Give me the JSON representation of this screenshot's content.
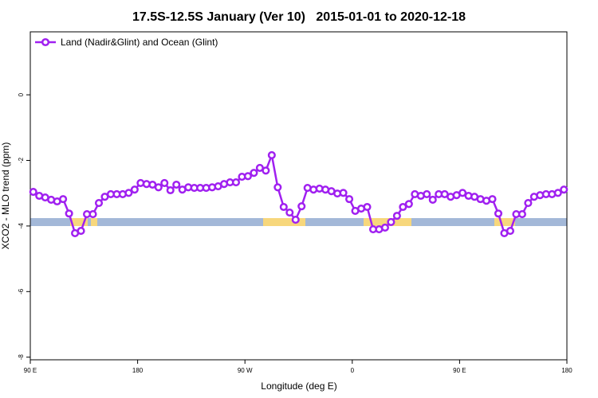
{
  "chart_data": {
    "type": "line",
    "title": "17.5S-12.5S January (Ver 10)   2015-01-01 to 2020-12-18",
    "xlabel": "Longitude (deg E)",
    "ylabel": "XCO2 - MLO trend (ppm)",
    "xlim": [
      90,
      540
    ],
    "ylim": [
      -8.08,
      1.92
    ],
    "xticks": [
      {
        "value": 90,
        "label": "90 E"
      },
      180,
      {
        "value": 270,
        "label": "90 W"
      },
      {
        "value": 360,
        "label": "0"
      },
      {
        "value": 450,
        "label": "90 E"
      },
      {
        "value": 540,
        "label": "180"
      }
    ],
    "yticks": [
      0,
      -2,
      -4,
      -6,
      -8
    ],
    "legend": "top-left",
    "x": [
      92.5,
      97.5,
      102.5,
      107.5,
      112.5,
      117.5,
      122.5,
      127.5,
      132.5,
      137.5,
      142.5,
      147.5,
      152.5,
      157.5,
      162.5,
      167.5,
      172.5,
      177.5,
      182.5,
      187.5,
      192.5,
      197.5,
      202.5,
      207.5,
      212.5,
      217.5,
      222.5,
      227.5,
      232.5,
      237.5,
      242.5,
      247.5,
      252.5,
      257.5,
      262.5,
      267.5,
      272.5,
      277.5,
      282.5,
      287.5,
      292.5,
      297.5,
      302.5,
      307.5,
      312.5,
      317.5,
      322.5,
      327.5,
      332.5,
      337.5,
      342.5,
      347.5,
      352.5,
      357.5,
      362.5,
      367.5,
      372.5,
      377.5,
      382.5,
      387.5,
      392.5,
      397.5,
      402.5,
      407.5,
      412.5,
      417.5,
      422.5,
      427.5,
      432.5,
      437.5,
      442.5,
      447.5,
      452.5,
      457.5,
      462.5,
      467.5,
      472.5,
      477.5,
      482.5,
      487.5,
      492.5,
      497.5,
      502.5,
      507.5,
      512.5,
      517.5,
      522.5,
      527.5,
      532.5,
      537.5
    ],
    "series": [
      {
        "name": "Land (Nadir&Glint) and Ocean (Glint)",
        "color": "#a020f0",
        "values": [
          -2.96,
          -3.08,
          -3.13,
          -3.2,
          -3.25,
          -3.18,
          -3.62,
          -4.22,
          -4.15,
          -3.64,
          -3.64,
          -3.3,
          -3.11,
          -3.03,
          -3.03,
          -3.03,
          -2.99,
          -2.89,
          -2.69,
          -2.72,
          -2.74,
          -2.82,
          -2.69,
          -2.91,
          -2.74,
          -2.89,
          -2.82,
          -2.84,
          -2.84,
          -2.84,
          -2.82,
          -2.79,
          -2.72,
          -2.67,
          -2.67,
          -2.5,
          -2.48,
          -2.38,
          -2.23,
          -2.31,
          -1.84,
          -2.82,
          -3.42,
          -3.59,
          -3.81,
          -3.4,
          -2.84,
          -2.89,
          -2.86,
          -2.89,
          -2.94,
          -3.01,
          -2.99,
          -3.18,
          -3.54,
          -3.47,
          -3.42,
          -4.1,
          -4.1,
          -4.05,
          -3.88,
          -3.69,
          -3.42,
          -3.33,
          -3.03,
          -3.08,
          -3.03,
          -3.2,
          -3.03,
          -3.03,
          -3.11,
          -3.06,
          -2.99,
          -3.08,
          -3.11,
          -3.18,
          -3.23,
          -3.18,
          -3.62,
          -4.22,
          -4.15,
          -3.64,
          -3.64,
          -3.3,
          -3.11,
          -3.06,
          -3.03,
          -3.03,
          -2.99,
          -2.89
        ]
      }
    ]
  }
}
